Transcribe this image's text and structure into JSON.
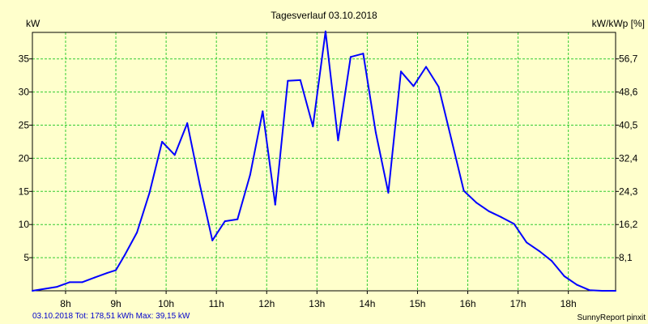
{
  "chart_data": {
    "type": "line",
    "title": "Tagesverlauf 03.10.2018",
    "ylabel_left": "kW",
    "ylabel_right": "kW/kWp [%]",
    "y_ticks_left": [
      "5",
      "10",
      "15",
      "20",
      "25",
      "30",
      "35"
    ],
    "y_ticks_left_values": [
      5,
      10,
      15,
      20,
      25,
      30,
      35
    ],
    "y_ticks_right": [
      "8,1",
      "16,2",
      "24,3",
      "32,4",
      "40,5",
      "48,6",
      "56,7"
    ],
    "ylim": [
      0,
      39
    ],
    "x_tick_labels": [
      "8h",
      "9h",
      "10h",
      "11h",
      "12h",
      "13h",
      "14h",
      "15h",
      "16h",
      "17h",
      "18h"
    ],
    "x_tick_values": [
      8,
      9,
      10,
      11,
      12,
      13,
      14,
      15,
      16,
      17,
      18
    ],
    "xlim": [
      7.34,
      18.94
    ],
    "grid": true,
    "colors": {
      "background": "#ffffcc",
      "grid": "#33cc33",
      "line": "#0000ff",
      "axis": "#000000",
      "footer_left": "#0000cc",
      "footer_right": "#000000"
    },
    "series": [
      {
        "name": "kW",
        "x": [
          7.34,
          7.83,
          8.08,
          8.33,
          8.58,
          8.83,
          9.0,
          9.17,
          9.42,
          9.67,
          9.92,
          10.17,
          10.42,
          10.67,
          10.92,
          11.17,
          11.42,
          11.67,
          11.92,
          12.17,
          12.42,
          12.67,
          12.92,
          13.17,
          13.42,
          13.67,
          13.92,
          14.17,
          14.42,
          14.67,
          14.92,
          15.17,
          15.42,
          15.67,
          15.92,
          16.17,
          16.42,
          16.67,
          16.92,
          17.17,
          17.42,
          17.67,
          17.92,
          18.17,
          18.42,
          18.67,
          18.94
        ],
        "values": [
          0.0,
          0.6,
          1.3,
          1.3,
          2.0,
          2.7,
          3.1,
          5.3,
          8.8,
          14.8,
          22.5,
          20.5,
          25.3,
          16.0,
          7.6,
          10.5,
          10.8,
          17.5,
          27.1,
          13.0,
          31.7,
          31.8,
          24.8,
          39.15,
          22.7,
          35.3,
          35.8,
          23.9,
          14.8,
          33.1,
          30.9,
          33.8,
          30.8,
          23.0,
          15.1,
          13.3,
          12.0,
          11.1,
          10.1,
          7.3,
          6.0,
          4.5,
          2.2,
          0.9,
          0.1,
          0.0,
          0.0
        ]
      }
    ]
  },
  "footer": {
    "left": "03.10.2018 Tot: 178,51 kWh Max: 39,15 kW",
    "right": "SunnyReport pinxit"
  }
}
